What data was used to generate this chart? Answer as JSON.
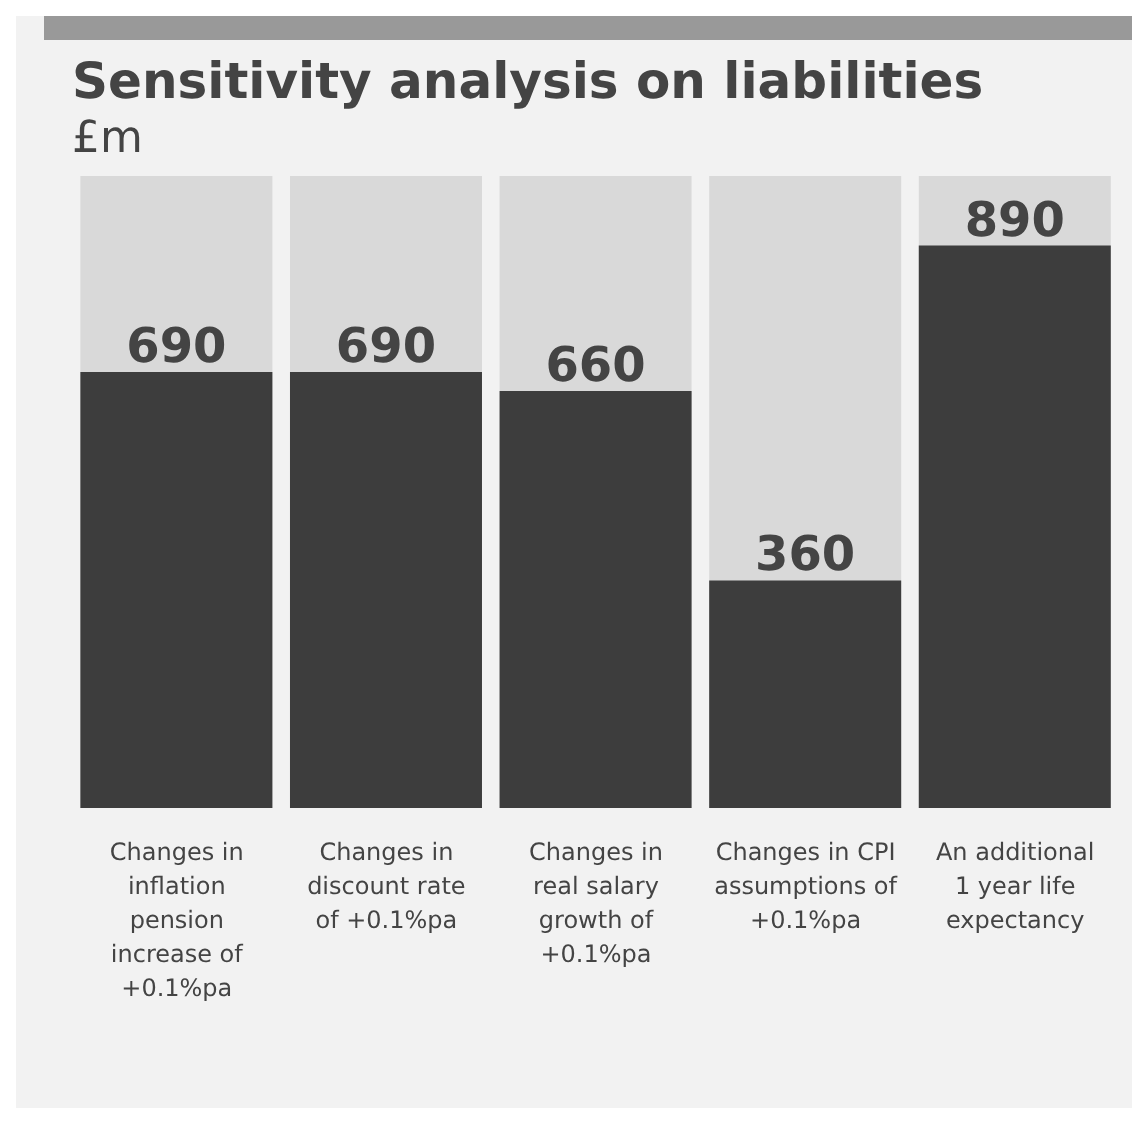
{
  "chart_data": {
    "type": "bar",
    "title": "Sensitivity analysis on liabilities",
    "subtitle": "£m",
    "categories": [
      "Changes in inflation pension increase of +0.1%pa",
      "Changes in discount rate of +0.1%pa",
      "Changes in real salary growth of +0.1%pa",
      "Changes in CPI assumptions of +0.1%pa",
      "An additional 1 year life expectancy"
    ],
    "values": [
      690,
      690,
      660,
      360,
      890
    ],
    "color": "#3d3d3d",
    "ylim": [
      0,
      1000
    ],
    "data_labels": true
  }
}
